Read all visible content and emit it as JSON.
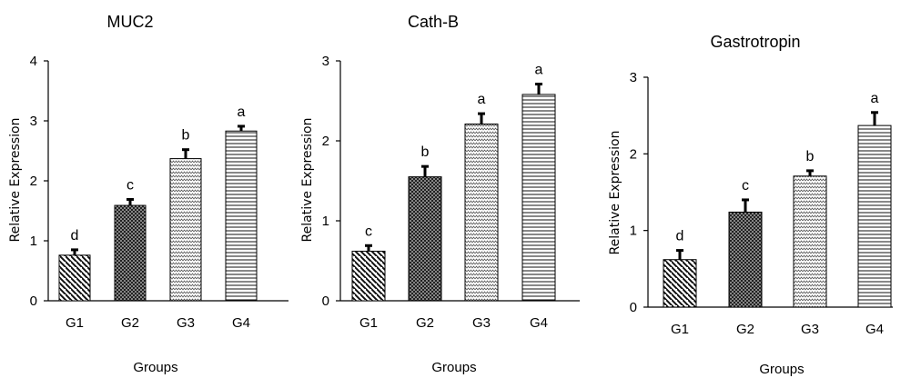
{
  "chart_data": [
    {
      "type": "bar",
      "title": "MUC2",
      "xlabel": "Groups",
      "ylabel": "Relative Expression",
      "categories": [
        "G1",
        "G2",
        "G3",
        "G4"
      ],
      "values": [
        0.76,
        1.59,
        2.37,
        2.83
      ],
      "errors": [
        0.09,
        0.1,
        0.15,
        0.08
      ],
      "significance_letters": [
        "d",
        "c",
        "b",
        "a"
      ],
      "ylim": [
        0,
        4
      ],
      "yticks": [
        "0",
        "1",
        "2",
        "3",
        "4"
      ],
      "patterns": [
        "diagonal",
        "dots",
        "zigzag",
        "horizontal"
      ],
      "grid": false
    },
    {
      "type": "bar",
      "title": "Cath-B",
      "xlabel": "Groups",
      "ylabel": "Relative Expression",
      "categories": [
        "G1",
        "G2",
        "G3",
        "G4"
      ],
      "values": [
        0.62,
        1.55,
        2.21,
        2.58
      ],
      "errors": [
        0.07,
        0.13,
        0.13,
        0.13
      ],
      "significance_letters": [
        "c",
        "b",
        "a",
        "a"
      ],
      "ylim": [
        0,
        3
      ],
      "yticks": [
        "0",
        "1",
        "2",
        "3"
      ],
      "patterns": [
        "diagonal",
        "dots",
        "zigzag",
        "horizontal"
      ],
      "grid": false
    },
    {
      "type": "bar",
      "title": "Gastrotropin",
      "xlabel": "Groups",
      "ylabel": "Relative Expression",
      "categories": [
        "G1",
        "G2",
        "G3",
        "G4"
      ],
      "values": [
        0.62,
        1.24,
        1.71,
        2.37
      ],
      "errors": [
        0.12,
        0.16,
        0.07,
        0.17
      ],
      "significance_letters": [
        "d",
        "c",
        "b",
        "a"
      ],
      "ylim": [
        0,
        3
      ],
      "yticks": [
        "0",
        "1",
        "2",
        "3"
      ],
      "patterns": [
        "diagonal",
        "dots",
        "zigzag",
        "horizontal"
      ],
      "grid": false
    }
  ]
}
